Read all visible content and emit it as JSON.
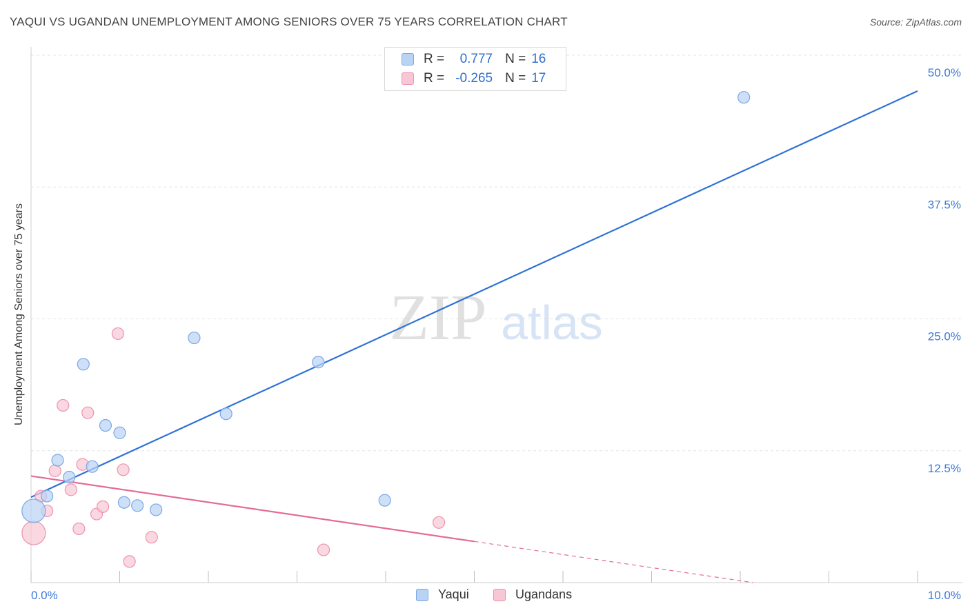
{
  "title": "YAQUI VS UGANDAN UNEMPLOYMENT AMONG SENIORS OVER 75 YEARS CORRELATION CHART",
  "source": "Source: ZipAtlas.com",
  "watermark": {
    "zip": "ZIP",
    "atlas": "atlas"
  },
  "legend": {
    "rows": [
      {
        "r_label": "R =",
        "r_value": "0.777",
        "n_label": "N =",
        "n_value": "16"
      },
      {
        "r_label": "R =",
        "r_value": "-0.265",
        "n_label": "N =",
        "n_value": "17"
      }
    ]
  },
  "bottom_legend": {
    "yaqui": "Yaqui",
    "ugandans": "Ugandans"
  },
  "colors": {
    "yaqui_fill": "#b9d3f5",
    "yaqui_stroke": "#7aa7e3",
    "yaqui_line": "#2f72d6",
    "ugandans_fill": "#f8c7d5",
    "ugandans_stroke": "#ec93af",
    "ugandans_line": "#e56b97",
    "tick_label": "#3b78d8",
    "grid": "#e4e4e4"
  },
  "chart_data": {
    "type": "scatter",
    "title": "YAQUI VS UGANDAN UNEMPLOYMENT AMONG SENIORS OVER 75 YEARS CORRELATION CHART",
    "xlabel": "",
    "ylabel": "Unemployment Among Seniors over 75 years",
    "xlim": [
      0,
      10
    ],
    "ylim": [
      0,
      52
    ],
    "x_tick_labels": [
      "0.0%",
      "10.0%"
    ],
    "y_ticks": [
      12.5,
      25.0,
      37.5,
      50.0
    ],
    "y_tick_labels": [
      "12.5%",
      "25.0%",
      "37.5%",
      "50.0%"
    ],
    "grid": true,
    "legend_position": "top-center",
    "series": [
      {
        "name": "Yaqui",
        "points": [
          {
            "x": 0.03,
            "y": 6.8,
            "size": "large"
          },
          {
            "x": 0.18,
            "y": 8.2
          },
          {
            "x": 0.3,
            "y": 11.6
          },
          {
            "x": 0.43,
            "y": 10.0
          },
          {
            "x": 0.59,
            "y": 20.7
          },
          {
            "x": 0.69,
            "y": 11.0
          },
          {
            "x": 0.84,
            "y": 14.9
          },
          {
            "x": 1.0,
            "y": 14.2
          },
          {
            "x": 1.05,
            "y": 7.6
          },
          {
            "x": 1.2,
            "y": 7.3
          },
          {
            "x": 1.41,
            "y": 6.9
          },
          {
            "x": 1.84,
            "y": 23.2
          },
          {
            "x": 2.2,
            "y": 16.0
          },
          {
            "x": 3.24,
            "y": 20.9
          },
          {
            "x": 3.99,
            "y": 7.8
          },
          {
            "x": 8.04,
            "y": 46.0
          }
        ],
        "trend": {
          "x": [
            0,
            10
          ],
          "y": [
            8.1,
            46.6
          ]
        }
      },
      {
        "name": "Ugandans",
        "points": [
          {
            "x": 0.03,
            "y": 4.7,
            "size": "large"
          },
          {
            "x": 0.11,
            "y": 8.2
          },
          {
            "x": 0.18,
            "y": 6.8
          },
          {
            "x": 0.27,
            "y": 10.6
          },
          {
            "x": 0.36,
            "y": 16.8
          },
          {
            "x": 0.45,
            "y": 8.8
          },
          {
            "x": 0.54,
            "y": 5.1
          },
          {
            "x": 0.58,
            "y": 11.2
          },
          {
            "x": 0.64,
            "y": 16.1
          },
          {
            "x": 0.74,
            "y": 6.5
          },
          {
            "x": 0.81,
            "y": 7.2
          },
          {
            "x": 0.98,
            "y": 23.6
          },
          {
            "x": 1.04,
            "y": 10.7
          },
          {
            "x": 1.11,
            "y": 2.0
          },
          {
            "x": 1.36,
            "y": 4.3
          },
          {
            "x": 3.3,
            "y": 3.1
          },
          {
            "x": 4.6,
            "y": 5.7
          }
        ],
        "trend": {
          "x": [
            0,
            5.0
          ],
          "y": [
            10.1,
            3.9
          ]
        },
        "trend_dashed_extension": {
          "x": [
            5.0,
            10.0
          ],
          "y": [
            3.9,
            -2.3
          ]
        }
      }
    ]
  }
}
